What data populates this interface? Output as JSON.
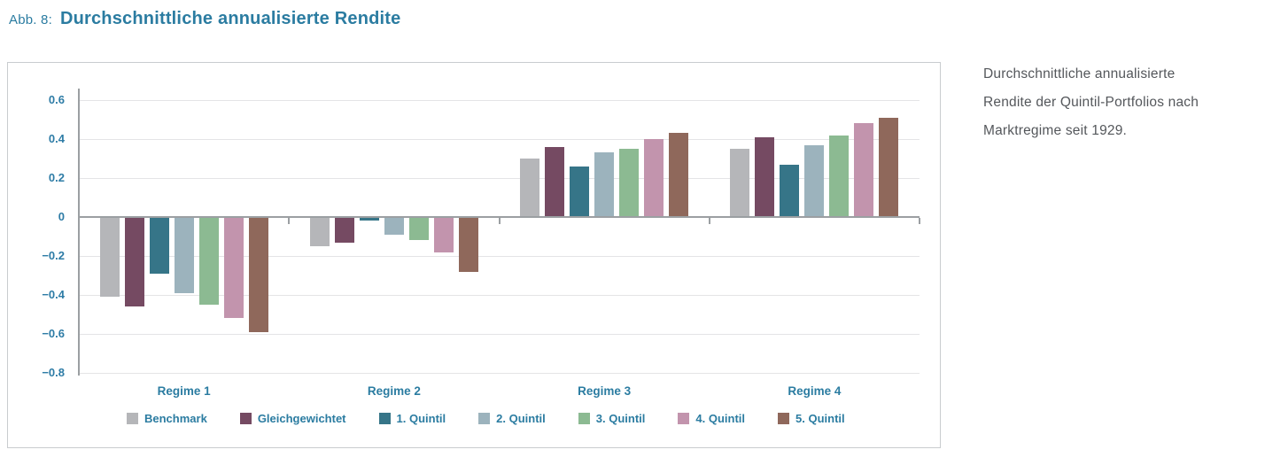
{
  "header": {
    "figure_label": "Abb. 8:",
    "title": "Durchschnittliche annualisierte Rendite"
  },
  "caption": {
    "line1": "Durchschnittliche annualisierte",
    "line2": "Rendite der Quintil-Portfolios nach",
    "line3": "Marktregime seit 1929."
  },
  "chart_data": {
    "type": "bar",
    "title": "Durchschnittliche annualisierte Rendite",
    "categories": [
      "Regime 1",
      "Regime 2",
      "Regime 3",
      "Regime 4"
    ],
    "series": [
      {
        "name": "Benchmark",
        "color": "#b5b6b9",
        "values": [
          -0.41,
          -0.15,
          0.3,
          0.35
        ]
      },
      {
        "name": "Gleichgewichtet",
        "color": "#754a62",
        "values": [
          -0.46,
          -0.13,
          0.36,
          0.41
        ]
      },
      {
        "name": "1. Quintil",
        "color": "#367588",
        "values": [
          -0.29,
          -0.02,
          0.26,
          0.27
        ]
      },
      {
        "name": "2. Quintil",
        "color": "#9cb3bd",
        "values": [
          -0.39,
          -0.09,
          0.33,
          0.37
        ]
      },
      {
        "name": "3. Quintil",
        "color": "#8cba92",
        "values": [
          -0.45,
          -0.12,
          0.35,
          0.42
        ]
      },
      {
        "name": "4. Quintil",
        "color": "#c294ad",
        "values": [
          -0.52,
          -0.18,
          0.4,
          0.48
        ]
      },
      {
        "name": "5. Quintil",
        "color": "#8f685b",
        "values": [
          -0.59,
          -0.28,
          0.43,
          0.51
        ]
      }
    ],
    "xlabel": "",
    "ylabel": "",
    "ylim": [
      -0.8,
      0.6
    ],
    "yticks": [
      0.6,
      0.4,
      0.2,
      0,
      -0.2,
      -0.4,
      -0.6,
      -0.8
    ],
    "ytick_labels": [
      "0.6",
      "0.4",
      "0.2",
      "0",
      "−0.2",
      "−0.4",
      "−0.6",
      "−0.8"
    ],
    "grid": true,
    "legend_position": "bottom"
  },
  "colors": {
    "accent_text": "#2b7ca1",
    "caption_text": "#54575b",
    "gridline": "#e4e4e6",
    "axis_line": "#9b9fa2",
    "panel_border": "#c9cccf"
  }
}
